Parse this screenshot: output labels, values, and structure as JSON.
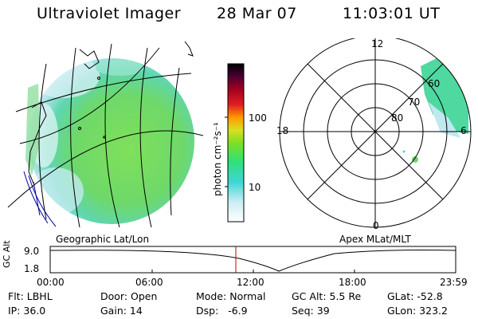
{
  "header": {
    "instrument": "Ultraviolet Imager",
    "date": "28 Mar 07",
    "time": "11:03:01 UT"
  },
  "colorbar": {
    "unit_label": "photon cm⁻²s⁻¹",
    "ticks": [
      "100",
      "10"
    ]
  },
  "polar_plot": {
    "mlt_labels": {
      "top": "12",
      "left": "18",
      "right": "6",
      "bottom": "0"
    },
    "lat_labels": [
      "60",
      "70",
      "80"
    ]
  },
  "captions": {
    "left": "Geographic Lat/Lon",
    "right": "Apex MLat/MLT"
  },
  "gc_alt_panel": {
    "axis_label": "GC Alt",
    "y_ticks": [
      "9.0",
      "1.8"
    ],
    "x_ticks": [
      "00:00",
      "06:00",
      "12:00",
      "18:00",
      "23:59"
    ]
  },
  "status": {
    "flt": "Flt: LBHL",
    "ip": "IP: 36.0",
    "door": "Door: Open",
    "gain": "Gain: 14",
    "mode": "Mode: Normal",
    "dsp": "Dsp:   -6.9",
    "gcalt": "GC Alt: 5.5 Re",
    "seq": "Seq: 39",
    "glat": "GLat: -52.8",
    "glon": "GLon: 323.2"
  },
  "colors": {
    "background": "#ffffff",
    "line": "#000000",
    "marker": "#c00000",
    "map_outline": "#0000aa"
  }
}
